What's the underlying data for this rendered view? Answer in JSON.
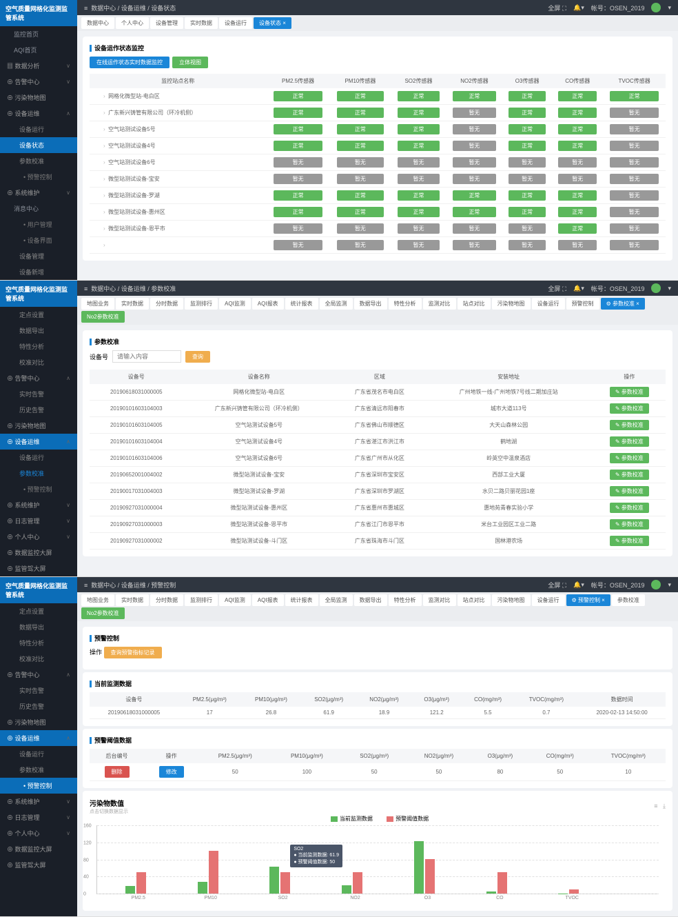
{
  "system_name": "空气质量网格化监测监管系统",
  "account_label": "帐号：OSEN_2019",
  "fullscreen": "全屏",
  "colors": {
    "blue": "#1a86d8",
    "green": "#5cb85c",
    "gray": "#999",
    "red": "#d9534f",
    "orange": "#f0ad4e",
    "bg": "#f0f2f5"
  },
  "panel1": {
    "breadcrumb": "数据中心  /  设备运维  /  设备状态",
    "sidebar_groups": [
      {
        "items": [
          "监控首页",
          "AQI首页"
        ]
      },
      {
        "label": "数据分析",
        "items": []
      },
      {
        "label": "告警中心",
        "items": []
      },
      {
        "label": "污染物地图",
        "items": []
      },
      {
        "label": "设备运维",
        "open": true,
        "items": [
          "设备运行",
          "设备状态",
          "参数校准"
        ],
        "subitems": [
          "预警控制"
        ]
      },
      {
        "label": "系统维护",
        "items": []
      },
      {
        "label": "消息中心",
        "items": [
          "用户管理",
          "设备界面"
        ]
      },
      {
        "before": [
          "设备管理",
          "设备新增"
        ]
      }
    ],
    "tabs": [
      "数据中心",
      "个人中心",
      "设备管理",
      "实时数据",
      "设备运行"
    ],
    "tabs_active": "设备状态",
    "card_title": "设备运作状态监控",
    "btn1": "在线运作状态实时数据监控",
    "btn2": "立体视图",
    "headers": [
      "监控站点名称",
      "PM2.5传感器",
      "PM10传感器",
      "SO2传感器",
      "NO2传感器",
      "O3传感器",
      "CO传感器",
      "TVOC传感器"
    ],
    "rows": [
      {
        "name": "网格化微型站-电白区",
        "status": [
          "正常",
          "正常",
          "正常",
          "正常",
          "正常",
          "正常",
          "正常"
        ],
        "style": [
          "g",
          "g",
          "g",
          "g",
          "g",
          "g",
          "g"
        ]
      },
      {
        "name": "广东新兴铸管有限公司（环冷机侧）",
        "status": [
          "正常",
          "正常",
          "正常",
          "暂无",
          "正常",
          "正常",
          "暂无"
        ],
        "style": [
          "g",
          "g",
          "g",
          "x",
          "g",
          "g",
          "x"
        ]
      },
      {
        "name": "空气站测试设备5号",
        "status": [
          "正常",
          "正常",
          "正常",
          "暂无",
          "正常",
          "正常",
          "暂无"
        ],
        "style": [
          "g",
          "g",
          "g",
          "x",
          "g",
          "g",
          "x"
        ]
      },
      {
        "name": "空气站测试设备4号",
        "status": [
          "正常",
          "正常",
          "正常",
          "暂无",
          "正常",
          "正常",
          "暂无"
        ],
        "style": [
          "g",
          "g",
          "g",
          "x",
          "g",
          "g",
          "x"
        ]
      },
      {
        "name": "空气站测试设备6号",
        "status": [
          "暂无",
          "暂无",
          "暂无",
          "暂无",
          "暂无",
          "暂无",
          "暂无"
        ],
        "style": [
          "x",
          "x",
          "x",
          "x",
          "x",
          "x",
          "x"
        ]
      },
      {
        "name": "微型站测试设备-宝安",
        "status": [
          "暂无",
          "暂无",
          "暂无",
          "暂无",
          "暂无",
          "暂无",
          "暂无"
        ],
        "style": [
          "x",
          "x",
          "x",
          "x",
          "x",
          "x",
          "x"
        ]
      },
      {
        "name": "微型站测试设备-罗湖",
        "status": [
          "正常",
          "正常",
          "正常",
          "正常",
          "正常",
          "正常",
          "暂无"
        ],
        "style": [
          "g",
          "g",
          "g",
          "g",
          "g",
          "g",
          "x"
        ]
      },
      {
        "name": "微型站测试设备-惠州区",
        "status": [
          "正常",
          "正常",
          "正常",
          "正常",
          "正常",
          "正常",
          "暂无"
        ],
        "style": [
          "g",
          "g",
          "g",
          "g",
          "g",
          "g",
          "x"
        ]
      },
      {
        "name": "微型站测试设备-恩平市",
        "status": [
          "暂无",
          "暂无",
          "暂无",
          "暂无",
          "暂无",
          "正常",
          "暂无"
        ],
        "style": [
          "x",
          "x",
          "x",
          "x",
          "x",
          "g",
          "x"
        ]
      },
      {
        "name": "",
        "status": [
          "暂无",
          "暂无",
          "暂无",
          "暂无",
          "暂无",
          "暂无",
          "暂无"
        ],
        "style": [
          "x",
          "x",
          "x",
          "x",
          "x",
          "x",
          "x"
        ]
      }
    ]
  },
  "panel2": {
    "breadcrumb": "数据中心  /  设备运维  /  参数校准",
    "sidebar": [
      "定点设置",
      "数据导出",
      "特性分析",
      "校准对比"
    ],
    "sidebar_groups": [
      "告警中心",
      "污染物地图",
      "设备运维",
      "系统维护",
      "日志管理",
      "个人中心",
      "数据监控大屏",
      "监管驾大屏"
    ],
    "side_sub": [
      "实时告警",
      "历史告警"
    ],
    "side_sub2": [
      "设备运行",
      "参数校准"
    ],
    "side_sub3": [
      "预警控制"
    ],
    "tabs": [
      "地图业务",
      "实时数据",
      "分时数据",
      "监测排行",
      "AQI监测",
      "AQI报表",
      "统计报表",
      "全局监测",
      "数据导出",
      "特性分析",
      "监测对比",
      "站点对比",
      "污染物地图",
      "设备运行"
    ],
    "tabs_right": [
      "预警控制",
      "参数校准",
      "No2参数校准"
    ],
    "card_title": "参数校准",
    "search_label": "设备号",
    "search_placeholder": "请输入内容",
    "search_btn": "查询",
    "headers": [
      "设备号",
      "设备名称",
      "区域",
      "安装地址",
      "操作"
    ],
    "action_btn": "参数校准",
    "rows": [
      {
        "id": "20190618031000005",
        "name": "网格化微型站-电白区",
        "area": "广东省茂名市电白区",
        "addr": "广州地铁一线-广州地铁7号线二期加庄站"
      },
      {
        "id": "20190101603104003",
        "name": "广东新兴铸管有限公司（环冷机侧）",
        "area": "广东省清远市阳春市",
        "addr": "城市大道113号"
      },
      {
        "id": "20190101603104005",
        "name": "空气站测试设备5号",
        "area": "广东省佛山市顺德区",
        "addr": "大天山森林公园"
      },
      {
        "id": "20190101603104004",
        "name": "空气站测试设备4号",
        "area": "广东省湛江市洪江市",
        "addr": "鹤地湖"
      },
      {
        "id": "20190101603104006",
        "name": "空气站测试设备6号",
        "area": "广东省广州市从化区",
        "addr": "岭英空中温泉酒店"
      },
      {
        "id": "20190652001004002",
        "name": "微型站测试设备-宝安",
        "area": "广东省深圳市宝安区",
        "addr": "西部工业大厦"
      },
      {
        "id": "20190017031004003",
        "name": "微型站测试设备-罗湖",
        "area": "广东省深圳市罗湖区",
        "addr": "水贝二路贝丽花园1座"
      },
      {
        "id": "20190927031000004",
        "name": "微型站测试设备-惠州区",
        "area": "广东省惠州市惠城区",
        "addr": "惠地苑青春实验小学"
      },
      {
        "id": "20190927031000003",
        "name": "微型站测试设备-恩平市",
        "area": "广东省江门市恩平市",
        "addr": "米台工业园区工业二路"
      },
      {
        "id": "20190927031000002",
        "name": "微型站测试设备-斗门区",
        "area": "广东省珠海市斗门区",
        "addr": "国林港农场"
      }
    ]
  },
  "panel3": {
    "breadcrumb": "数据中心  /  设备运维  /  预警控制",
    "sidebar": [
      "定点设置",
      "数据导出",
      "特性分析",
      "校准对比"
    ],
    "tabs": [
      "地图业务",
      "实时数据",
      "分时数据",
      "监测排行",
      "AQI监测",
      "AQI报表",
      "统计报表",
      "全局监测",
      "数据导出",
      "特性分析",
      "监测对比",
      "站点对比",
      "污染物地图",
      "设备运行"
    ],
    "tabs_right": [
      "预警控制",
      "参数校准",
      "No2参数校准"
    ],
    "card_title": "预警控制",
    "op_label": "操作",
    "op_btn": "查询预警指标记录",
    "section1": "当前监测数据",
    "live_headers": [
      "设备号",
      "PM2.5(μg/m³)",
      "PM10(μg/m³)",
      "SO2(μg/m³)",
      "NO2(μg/m³)",
      "O3(μg/m³)",
      "CO(mg/m³)",
      "TVOC(mg/m³)",
      "数据时间"
    ],
    "live_row": {
      "id": "20190618031000005",
      "pm25": "17",
      "pm10": "26.8",
      "so2": "61.9",
      "no2": "18.9",
      "o3": "121.2",
      "co": "5.5",
      "tvoc": "0.7",
      "time": "2020-02-13 14:50:00"
    },
    "section2": "预警阈值数据",
    "thresh_headers": [
      "后台编号",
      "操作",
      "PM2.5(μg/m³)",
      "PM10(μg/m³)",
      "SO2(μg/m³)",
      "NO2(μg/m³)",
      "O3(μg/m³)",
      "CO(mg/m³)",
      "TVOC(mg/m³)"
    ],
    "thresh_ops": [
      "删除",
      "修改"
    ],
    "thresh_row": [
      "50",
      "100",
      "50",
      "50",
      "80",
      "50",
      "10"
    ],
    "chart": {
      "title": "污染物数值",
      "subtitle": "点击切换数据显示",
      "legend": [
        "当前监测数据",
        "预警阈值数据"
      ],
      "legend_colors": [
        "#5cb85c",
        "#e57373"
      ],
      "categories": [
        "PM2.5",
        "PM10",
        "SO2",
        "NO2",
        "O3",
        "CO",
        "TVOC"
      ],
      "series1": [
        17,
        26.8,
        61.9,
        18.9,
        121.2,
        5.5,
        0.7
      ],
      "series2": [
        50,
        100,
        50,
        50,
        80,
        50,
        10
      ],
      "ymax": 160,
      "ystep": 40,
      "tooltip": {
        "cat": "SO2",
        "l1": "当前监测数据: 61.9",
        "l2": "预警阈值数据: 50"
      }
    }
  }
}
